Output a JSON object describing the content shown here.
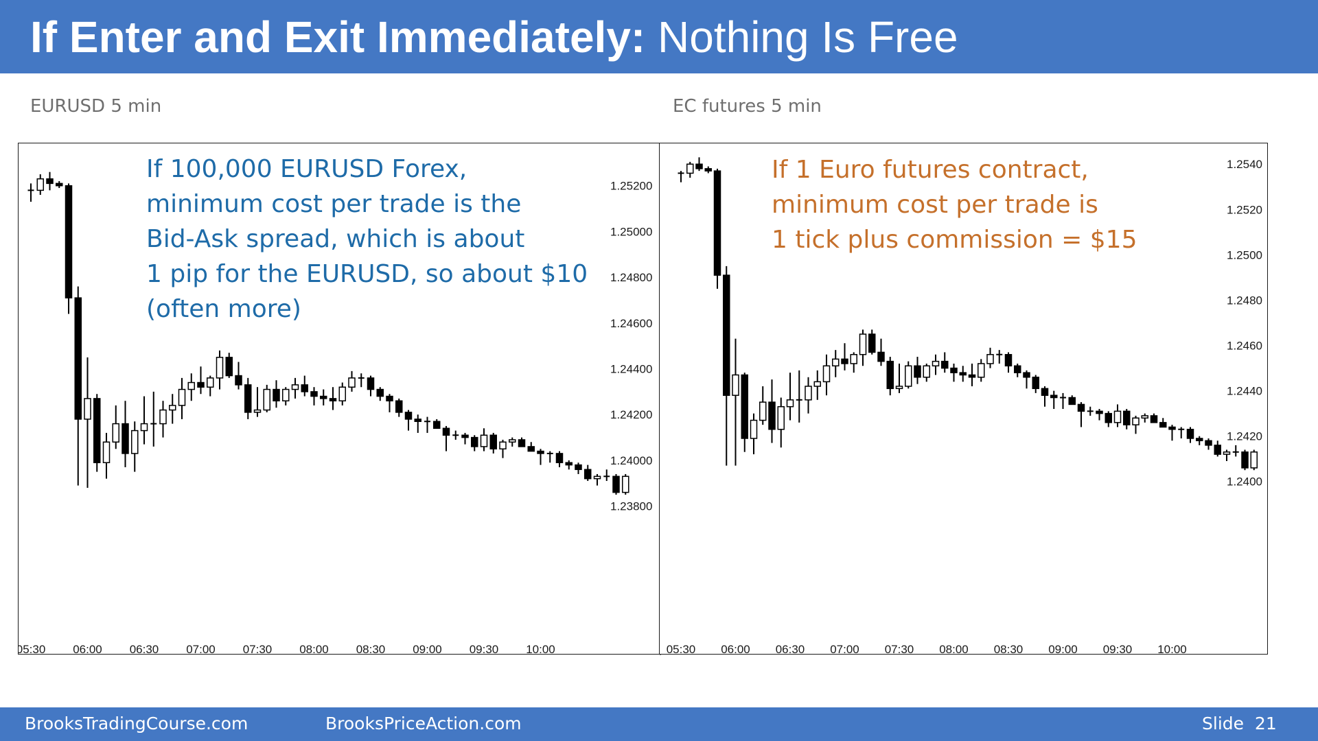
{
  "slide": {
    "title_bold": "If Enter and Exit Immediately:",
    "title_rest": "Nothing Is Free"
  },
  "footer": {
    "site1": "BrooksTradingCourse.com",
    "site2": "BrooksPriceAction.com",
    "slide_label": "Slide",
    "slide_number": "21"
  },
  "colors": {
    "header_bar": "#4478c4",
    "left_annotation": "#1e6ba8",
    "right_annotation": "#c5702b",
    "bear_candle": "#000000",
    "bull_candle": "#ffffff"
  },
  "annotations": {
    "left": [
      "If 100,000 EURUSD Forex,",
      "minimum cost per trade is the",
      "Bid-Ask spread, which is about",
      "1 pip for the EURUSD, so about $10",
      "(often more)"
    ],
    "right": [
      "If 1 Euro futures contract,",
      "minimum cost per trade is",
      "1 tick plus commission = $15"
    ]
  },
  "chart_data": [
    {
      "type": "candlestick",
      "title": "EURUSD 5 min",
      "x_tick_labels": [
        "05:30",
        "06:00",
        "06:30",
        "07:00",
        "07:30",
        "08:00",
        "08:30",
        "09:00",
        "09:30",
        "10:00"
      ],
      "y_tick_labels": [
        "1.25200",
        "1.25000",
        "1.24800",
        "1.24600",
        "1.24400",
        "1.24200",
        "1.24000",
        "1.23800"
      ],
      "y_ticks": [
        1.252,
        1.25,
        1.248,
        1.246,
        1.244,
        1.242,
        1.24,
        1.238
      ],
      "ylim": [
        1.2376,
        1.2534
      ],
      "x_first_bar": "05:30",
      "bar_minutes": 5,
      "candles": [
        [
          1.2518,
          1.2521,
          1.2513,
          1.2518
        ],
        [
          1.2518,
          1.2525,
          1.2516,
          1.2523
        ],
        [
          1.2523,
          1.2526,
          1.2518,
          1.2521
        ],
        [
          1.2521,
          1.2522,
          1.2519,
          1.252
        ],
        [
          1.252,
          1.2521,
          1.2464,
          1.2471
        ],
        [
          1.2471,
          1.2476,
          1.2389,
          1.2418
        ],
        [
          1.2418,
          1.2445,
          1.2388,
          1.2427
        ],
        [
          1.2427,
          1.2429,
          1.2395,
          1.2399
        ],
        [
          1.2399,
          1.2412,
          1.2392,
          1.2408
        ],
        [
          1.2408,
          1.2424,
          1.2405,
          1.2416
        ],
        [
          1.2416,
          1.2426,
          1.2397,
          1.2403
        ],
        [
          1.2403,
          1.2417,
          1.2395,
          1.2413
        ],
        [
          1.2413,
          1.2428,
          1.2407,
          1.2416
        ],
        [
          1.2416,
          1.243,
          1.2406,
          1.2416
        ],
        [
          1.2416,
          1.2426,
          1.241,
          1.2422
        ],
        [
          1.2422,
          1.2429,
          1.2416,
          1.2424
        ],
        [
          1.2424,
          1.2436,
          1.2418,
          1.2431
        ],
        [
          1.2431,
          1.2438,
          1.2426,
          1.2434
        ],
        [
          1.2434,
          1.2441,
          1.2429,
          1.2432
        ],
        [
          1.2432,
          1.2437,
          1.2428,
          1.2436
        ],
        [
          1.2436,
          1.2448,
          1.2431,
          1.2445
        ],
        [
          1.2445,
          1.2447,
          1.2436,
          1.2437
        ],
        [
          1.2437,
          1.2443,
          1.2431,
          1.2433
        ],
        [
          1.2433,
          1.2436,
          1.2418,
          1.2421
        ],
        [
          1.2421,
          1.2432,
          1.2419,
          1.2422
        ],
        [
          1.2422,
          1.2433,
          1.2421,
          1.2431
        ],
        [
          1.2431,
          1.2435,
          1.2423,
          1.2426
        ],
        [
          1.2426,
          1.2432,
          1.2424,
          1.2431
        ],
        [
          1.2431,
          1.2436,
          1.2427,
          1.2433
        ],
        [
          1.2433,
          1.2437,
          1.2428,
          1.243
        ],
        [
          1.243,
          1.2432,
          1.2424,
          1.2428
        ],
        [
          1.2428,
          1.2431,
          1.2424,
          1.2427
        ],
        [
          1.2427,
          1.2432,
          1.2422,
          1.2426
        ],
        [
          1.2426,
          1.2434,
          1.2424,
          1.2432
        ],
        [
          1.2432,
          1.2439,
          1.243,
          1.2436
        ],
        [
          1.2436,
          1.2438,
          1.2432,
          1.2436
        ],
        [
          1.2436,
          1.2437,
          1.2428,
          1.2431
        ],
        [
          1.2431,
          1.2432,
          1.2426,
          1.2428
        ],
        [
          1.2428,
          1.2429,
          1.2421,
          1.2426
        ],
        [
          1.2426,
          1.2427,
          1.2419,
          1.2421
        ],
        [
          1.2421,
          1.2422,
          1.2413,
          1.2418
        ],
        [
          1.2418,
          1.242,
          1.2412,
          1.2417
        ],
        [
          1.2417,
          1.2419,
          1.2412,
          1.2417
        ],
        [
          1.2417,
          1.2418,
          1.2414,
          1.2414
        ],
        [
          1.2414,
          1.2415,
          1.2404,
          1.2411
        ],
        [
          1.2411,
          1.2413,
          1.2409,
          1.2411
        ],
        [
          1.2411,
          1.2412,
          1.2407,
          1.241
        ],
        [
          1.241,
          1.2411,
          1.2404,
          1.2406
        ],
        [
          1.2406,
          1.2414,
          1.2404,
          1.2411
        ],
        [
          1.2411,
          1.2412,
          1.2403,
          1.2405
        ],
        [
          1.2405,
          1.2409,
          1.2401,
          1.2408
        ],
        [
          1.2408,
          1.241,
          1.2406,
          1.2409
        ],
        [
          1.2409,
          1.241,
          1.2406,
          1.2406
        ],
        [
          1.2406,
          1.2408,
          1.2404,
          1.2404
        ],
        [
          1.2404,
          1.2405,
          1.2398,
          1.2403
        ],
        [
          1.2403,
          1.2404,
          1.2399,
          1.2403
        ],
        [
          1.2403,
          1.2404,
          1.2397,
          1.2399
        ],
        [
          1.2399,
          1.24,
          1.2396,
          1.2398
        ],
        [
          1.2398,
          1.2399,
          1.2394,
          1.2396
        ],
        [
          1.2396,
          1.2398,
          1.2391,
          1.2392
        ],
        [
          1.2392,
          1.2394,
          1.2389,
          1.2393
        ],
        [
          1.2393,
          1.2396,
          1.2391,
          1.2393
        ],
        [
          1.2393,
          1.2394,
          1.2385,
          1.2386
        ],
        [
          1.2386,
          1.2394,
          1.2385,
          1.2393
        ]
      ]
    },
    {
      "type": "candlestick",
      "title": "EC futures 5 min",
      "x_tick_labels": [
        "05:30",
        "06:00",
        "06:30",
        "07:00",
        "07:30",
        "08:00",
        "08:30",
        "09:00",
        "09:30",
        "10:00"
      ],
      "y_tick_labels": [
        "1.2540",
        "1.2520",
        "1.2500",
        "1.2480",
        "1.2460",
        "1.2440",
        "1.2420",
        "1.2400"
      ],
      "y_ticks": [
        1.254,
        1.252,
        1.25,
        1.248,
        1.246,
        1.244,
        1.242,
        1.24
      ],
      "ylim": [
        1.2386,
        1.2544
      ],
      "x_first_bar": "05:30",
      "bar_minutes": 5,
      "candles": [
        [
          1.2536,
          1.2537,
          1.2532,
          1.2536
        ],
        [
          1.2536,
          1.2541,
          1.2534,
          1.254
        ],
        [
          1.254,
          1.2543,
          1.2537,
          1.2538
        ],
        [
          1.2538,
          1.2539,
          1.2536,
          1.2537
        ],
        [
          1.2537,
          1.2538,
          1.2485,
          1.2491
        ],
        [
          1.2491,
          1.2495,
          1.2407,
          1.2438
        ],
        [
          1.2438,
          1.2463,
          1.2407,
          1.2447
        ],
        [
          1.2447,
          1.2448,
          1.2413,
          1.2419
        ],
        [
          1.2419,
          1.243,
          1.2412,
          1.2427
        ],
        [
          1.2427,
          1.2442,
          1.2425,
          1.2435
        ],
        [
          1.2435,
          1.2445,
          1.2417,
          1.2423
        ],
        [
          1.2423,
          1.2437,
          1.2415,
          1.2433
        ],
        [
          1.2433,
          1.2448,
          1.2427,
          1.2436
        ],
        [
          1.2436,
          1.2449,
          1.2426,
          1.2436
        ],
        [
          1.2436,
          1.2446,
          1.243,
          1.2442
        ],
        [
          1.2442,
          1.2449,
          1.2436,
          1.2444
        ],
        [
          1.2444,
          1.2456,
          1.2438,
          1.2451
        ],
        [
          1.2451,
          1.2458,
          1.2446,
          1.2454
        ],
        [
          1.2454,
          1.2461,
          1.2449,
          1.2452
        ],
        [
          1.2452,
          1.2457,
          1.2448,
          1.2456
        ],
        [
          1.2456,
          1.2467,
          1.2451,
          1.2465
        ],
        [
          1.2465,
          1.2467,
          1.2456,
          1.2457
        ],
        [
          1.2457,
          1.2463,
          1.2451,
          1.2453
        ],
        [
          1.2453,
          1.2455,
          1.2438,
          1.2441
        ],
        [
          1.2441,
          1.2452,
          1.2439,
          1.2442
        ],
        [
          1.2442,
          1.2453,
          1.2441,
          1.2451
        ],
        [
          1.2451,
          1.2455,
          1.2443,
          1.2446
        ],
        [
          1.2446,
          1.2452,
          1.2444,
          1.2451
        ],
        [
          1.2451,
          1.2456,
          1.2447,
          1.2453
        ],
        [
          1.2453,
          1.2457,
          1.2448,
          1.245
        ],
        [
          1.245,
          1.2452,
          1.2444,
          1.2448
        ],
        [
          1.2448,
          1.2451,
          1.2444,
          1.2447
        ],
        [
          1.2447,
          1.2452,
          1.2442,
          1.2446
        ],
        [
          1.2446,
          1.2454,
          1.2444,
          1.2452
        ],
        [
          1.2452,
          1.2459,
          1.245,
          1.2456
        ],
        [
          1.2456,
          1.2458,
          1.2452,
          1.2456
        ],
        [
          1.2456,
          1.2457,
          1.2448,
          1.2451
        ],
        [
          1.2451,
          1.2452,
          1.2446,
          1.2448
        ],
        [
          1.2448,
          1.2449,
          1.2441,
          1.2446
        ],
        [
          1.2446,
          1.2447,
          1.2439,
          1.2441
        ],
        [
          1.2441,
          1.2442,
          1.2433,
          1.2438
        ],
        [
          1.2438,
          1.244,
          1.2432,
          1.2437
        ],
        [
          1.2437,
          1.2439,
          1.2432,
          1.2437
        ],
        [
          1.2437,
          1.2438,
          1.2434,
          1.2434
        ],
        [
          1.2434,
          1.2435,
          1.2424,
          1.2431
        ],
        [
          1.2431,
          1.2433,
          1.2429,
          1.2431
        ],
        [
          1.2431,
          1.2432,
          1.2427,
          1.243
        ],
        [
          1.243,
          1.2431,
          1.2424,
          1.2426
        ],
        [
          1.2426,
          1.2434,
          1.2424,
          1.2431
        ],
        [
          1.2431,
          1.2432,
          1.2423,
          1.2425
        ],
        [
          1.2425,
          1.2429,
          1.2421,
          1.2428
        ],
        [
          1.2428,
          1.243,
          1.2426,
          1.2429
        ],
        [
          1.2429,
          1.243,
          1.2426,
          1.2426
        ],
        [
          1.2426,
          1.2428,
          1.2424,
          1.2424
        ],
        [
          1.2424,
          1.2425,
          1.2418,
          1.2423
        ],
        [
          1.2423,
          1.2424,
          1.2419,
          1.2423
        ],
        [
          1.2423,
          1.2424,
          1.2417,
          1.2419
        ],
        [
          1.2419,
          1.242,
          1.2416,
          1.2418
        ],
        [
          1.2418,
          1.2419,
          1.2414,
          1.2416
        ],
        [
          1.2416,
          1.2418,
          1.2411,
          1.2412
        ],
        [
          1.2412,
          1.2414,
          1.2409,
          1.2413
        ],
        [
          1.2413,
          1.2416,
          1.2411,
          1.2413
        ],
        [
          1.2413,
          1.2414,
          1.2405,
          1.2406
        ],
        [
          1.2406,
          1.2414,
          1.2405,
          1.2413
        ]
      ]
    }
  ]
}
